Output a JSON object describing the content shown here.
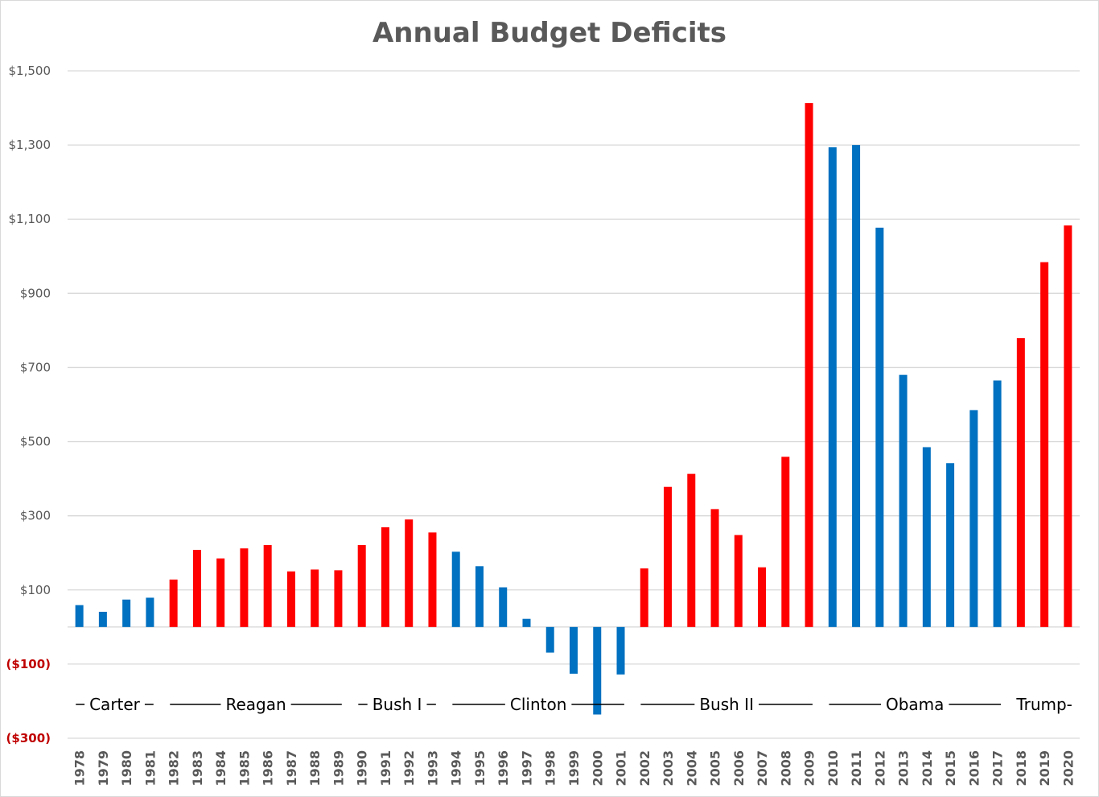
{
  "chart_data": {
    "type": "bar",
    "title": "Annual Budget Deficits",
    "xlabel": "",
    "ylabel": "",
    "ylim": [
      -300,
      1500
    ],
    "grid": true,
    "y_ticks": [
      {
        "value": 1500,
        "label": "$1,500"
      },
      {
        "value": 1300,
        "label": "$1,300"
      },
      {
        "value": 1100,
        "label": "$1,100"
      },
      {
        "value": 900,
        "label": "$900"
      },
      {
        "value": 700,
        "label": "$700"
      },
      {
        "value": 500,
        "label": "$500"
      },
      {
        "value": 300,
        "label": "$300"
      },
      {
        "value": 100,
        "label": "$100"
      },
      {
        "value": -100,
        "label": "($100)"
      },
      {
        "value": -300,
        "label": "($300)"
      }
    ],
    "categories": [
      "1978",
      "1979",
      "1980",
      "1981",
      "1982",
      "1983",
      "1984",
      "1985",
      "1986",
      "1987",
      "1988",
      "1989",
      "1990",
      "1991",
      "1992",
      "1993",
      "1994",
      "1995",
      "1996",
      "1997",
      "1998",
      "1999",
      "2000",
      "2001",
      "2002",
      "2003",
      "2004",
      "2005",
      "2006",
      "2007",
      "2008",
      "2009",
      "2010",
      "2011",
      "2012",
      "2013",
      "2014",
      "2015",
      "2016",
      "2017",
      "2018",
      "2019",
      "2020"
    ],
    "values": [
      59,
      41,
      74,
      79,
      128,
      208,
      185,
      212,
      221,
      150,
      155,
      153,
      221,
      269,
      290,
      255,
      203,
      164,
      107,
      22,
      -69,
      -126,
      -236,
      -128,
      158,
      378,
      413,
      318,
      248,
      161,
      459,
      1413,
      1294,
      1300,
      1077,
      680,
      485,
      442,
      585,
      665,
      779,
      984,
      1083
    ],
    "party": [
      "D",
      "D",
      "D",
      "D",
      "R",
      "R",
      "R",
      "R",
      "R",
      "R",
      "R",
      "R",
      "R",
      "R",
      "R",
      "R",
      "D",
      "D",
      "D",
      "D",
      "D",
      "D",
      "D",
      "D",
      "R",
      "R",
      "R",
      "R",
      "R",
      "R",
      "R",
      "R",
      "D",
      "D",
      "D",
      "D",
      "D",
      "D",
      "D",
      "D",
      "R",
      "R",
      "R"
    ],
    "colors": {
      "D": "#0070c0",
      "R": "#ff0000",
      "negative_label": "#c00000"
    },
    "eras": [
      {
        "label": "Carter",
        "prefix": "–- ",
        "suffix": " –",
        "from": "1978",
        "to": "1981"
      },
      {
        "label": "Reagan",
        "prefix": "——— ",
        "suffix": " ———",
        "from": "1982",
        "to": "1989"
      },
      {
        "label": "Bush I",
        "prefix": "–- ",
        "suffix": " –",
        "from": "1990",
        "to": "1993"
      },
      {
        "label": "Clinton",
        "prefix": "——— ",
        "suffix": "———",
        "from": "1994",
        "to": "2001"
      },
      {
        "label": "Bush II",
        "prefix": "——— ",
        "suffix": " ———",
        "from": "2002",
        "to": "2009"
      },
      {
        "label": "Obama",
        "prefix": "——— ",
        "suffix": " ———",
        "from": "2010",
        "to": "2017"
      },
      {
        "label": "Trump-",
        "prefix": "-",
        "suffix": "",
        "from": "2018",
        "to": "2020"
      }
    ]
  }
}
